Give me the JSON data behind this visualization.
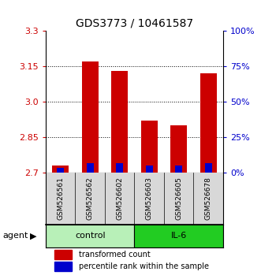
{
  "title": "GDS3773 / 10461587",
  "samples": [
    "GSM526561",
    "GSM526562",
    "GSM526602",
    "GSM526603",
    "GSM526605",
    "GSM526678"
  ],
  "red_top": [
    2.73,
    3.17,
    3.13,
    2.92,
    2.9,
    3.12
  ],
  "blue_top": [
    2.722,
    2.742,
    2.742,
    2.732,
    2.73,
    2.742
  ],
  "base": 2.7,
  "ylim": [
    2.7,
    3.3
  ],
  "yticks_left": [
    2.7,
    2.85,
    3.0,
    3.15,
    3.3
  ],
  "yticks_right": [
    0,
    25,
    50,
    75,
    100
  ],
  "gridlines": [
    2.85,
    3.0,
    3.15
  ],
  "groups": [
    {
      "label": "control",
      "indices": [
        0,
        1,
        2
      ],
      "color": "#b8f0b8"
    },
    {
      "label": "IL-6",
      "indices": [
        3,
        4,
        5
      ],
      "color": "#22cc22"
    }
  ],
  "bar_width": 0.55,
  "red_color": "#cc0000",
  "blue_color": "#0000cc",
  "left_tick_color": "#cc0000",
  "right_tick_color": "#0000cc",
  "title_fontsize": 10,
  "tick_fontsize": 8,
  "sample_fontsize": 6.5,
  "label_fontsize": 8,
  "legend_fontsize": 7,
  "bg_color": "#d8d8d8"
}
